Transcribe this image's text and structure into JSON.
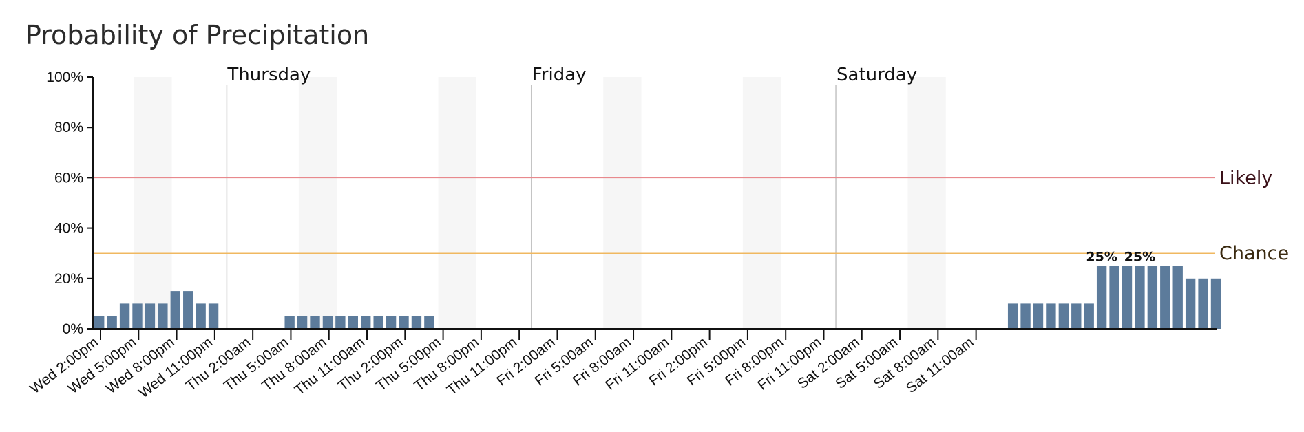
{
  "chart_data": {
    "type": "bar",
    "title": "Probability of Precipitation",
    "ylim": [
      0,
      100
    ],
    "y_ticks": [
      "0%",
      "20%",
      "40%",
      "60%",
      "80%",
      "100%"
    ],
    "x_start_label": "Wed 2:00pm",
    "tick_labels": [
      "Wed 2:00pm",
      "Wed 5:00pm",
      "Wed 8:00pm",
      "Wed 11:00pm",
      "Thu 2:00am",
      "Thu 5:00am",
      "Thu 8:00am",
      "Thu 11:00am",
      "Thu 2:00pm",
      "Thu 5:00pm",
      "Thu 8:00pm",
      "Thu 11:00pm",
      "Fri 2:00am",
      "Fri 5:00am",
      "Fri 8:00am",
      "Fri 11:00am",
      "Fri 2:00pm",
      "Fri 5:00pm",
      "Fri 8:00pm",
      "Fri 11:00pm",
      "Sat 2:00am",
      "Sat 5:00am",
      "Sat 8:00am",
      "Sat 11:00am"
    ],
    "values": [
      5,
      5,
      10,
      10,
      10,
      10,
      15,
      15,
      10,
      10,
      0,
      0,
      0,
      0,
      0,
      5,
      5,
      5,
      5,
      5,
      5,
      5,
      5,
      5,
      5,
      5,
      5,
      0,
      0,
      0,
      0,
      0,
      0,
      0,
      0,
      0,
      0,
      0,
      0,
      0,
      0,
      0,
      0,
      0,
      0,
      0,
      0,
      0,
      0,
      0,
      0,
      0,
      0,
      0,
      0,
      0,
      0,
      0,
      0,
      0,
      0,
      0,
      0,
      0,
      0,
      0,
      0,
      0,
      0,
      0,
      0,
      0,
      10,
      10,
      10,
      10,
      10,
      10,
      10,
      25,
      25,
      25,
      25,
      25,
      25,
      25,
      20,
      20,
      20
    ],
    "day_markers": [
      {
        "label": "Thursday",
        "hour_index": 10
      },
      {
        "label": "Friday",
        "hour_index": 34
      },
      {
        "label": "Saturday",
        "hour_index": 58
      }
    ],
    "night_bands": [
      [
        3,
        6
      ],
      [
        16,
        19
      ],
      [
        27,
        30
      ],
      [
        40,
        43
      ],
      [
        51,
        54
      ],
      [
        64,
        67
      ]
    ],
    "thresholds": [
      {
        "label": "Likely",
        "value": 60,
        "color": "#e8898d",
        "text_color": "#3a1018"
      },
      {
        "label": "Chance",
        "value": 30,
        "color": "#f0b860",
        "text_color": "#3a2a10"
      }
    ],
    "data_labels": [
      {
        "text": "25%",
        "hour_index": 79
      },
      {
        "text": "25%",
        "hour_index": 82
      }
    ],
    "bar_color": "#5c7b9b",
    "legend": "none",
    "grid": false
  }
}
